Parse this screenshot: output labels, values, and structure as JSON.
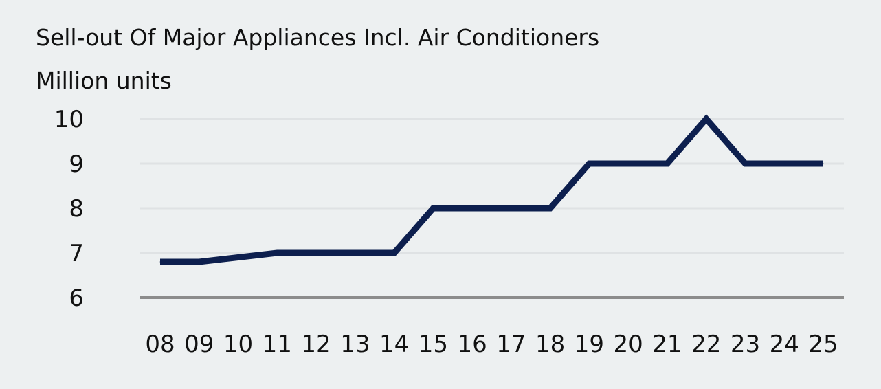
{
  "chart_data": {
    "type": "line",
    "title": "Sell-out Of Major Appliances Incl. Air Conditioners",
    "subtitle": "Million units",
    "xlabel": "",
    "ylabel": "",
    "categories": [
      "08",
      "09",
      "10",
      "11",
      "12",
      "13",
      "14",
      "15",
      "16",
      "17",
      "18",
      "19",
      "20",
      "21",
      "22",
      "23",
      "24",
      "25"
    ],
    "series": [
      {
        "values": [
          6.8,
          6.8,
          6.9,
          7.0,
          7.0,
          7.0,
          7.0,
          8.0,
          8.0,
          8.0,
          8.0,
          9.0,
          9.0,
          9.0,
          10.0,
          9.0,
          9.0,
          9.0
        ]
      }
    ],
    "yticks": [
      "6",
      "7",
      "8",
      "9",
      "10"
    ],
    "ylim": [
      6,
      10
    ],
    "grid": true,
    "legend": "none",
    "colors": {
      "background": "#edf0f1",
      "line": "#0d1f4e",
      "grid": "#dfe2e4",
      "baseline": "#8c8c8c",
      "text": "#111111"
    }
  }
}
